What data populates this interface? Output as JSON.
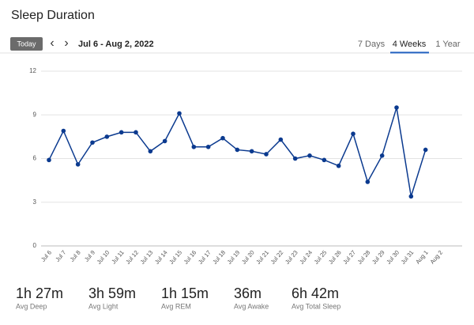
{
  "header": {
    "title": "Sleep Duration"
  },
  "toolbar": {
    "today": "Today",
    "prev": "‹",
    "next": "›",
    "range": "Jul 6 - Aug 2, 2022",
    "tabs": [
      "7 Days",
      "4 Weeks",
      "1 Year"
    ],
    "active_tab": 1
  },
  "chart_data": {
    "type": "line",
    "color": "#0b3a8f",
    "grid": true,
    "categories": [
      "Jul 6",
      "Jul 7",
      "Jul 8",
      "Jul 9",
      "Jul 10",
      "Jul 11",
      "Jul 12",
      "Jul 13",
      "Jul 14",
      "Jul 15",
      "Jul 16",
      "Jul 17",
      "Jul 18",
      "Jul 19",
      "Jul 20",
      "Jul 21",
      "Jul 22",
      "Jul 23",
      "Jul 24",
      "Jul 25",
      "Jul 26",
      "Jul 27",
      "Jul 28",
      "Jul 29",
      "Jul 30",
      "Jul 31",
      "Aug 1",
      "Aug 2"
    ],
    "values": [
      5.9,
      7.9,
      5.6,
      7.1,
      7.5,
      7.8,
      7.8,
      6.5,
      7.2,
      9.1,
      6.8,
      6.8,
      7.4,
      6.6,
      6.5,
      6.3,
      7.3,
      6.0,
      6.2,
      5.9,
      5.5,
      7.7,
      4.4,
      6.2,
      9.5,
      3.4,
      6.6,
      null
    ],
    "ylim": [
      0,
      12
    ],
    "yticks": [
      0,
      3,
      6,
      9,
      12
    ]
  },
  "stats": [
    {
      "value": "1h 27m",
      "label": "Avg Deep"
    },
    {
      "value": "3h 59m",
      "label": "Avg Light"
    },
    {
      "value": "1h 15m",
      "label": "Avg REM"
    },
    {
      "value": "36m",
      "label": "Avg Awake"
    },
    {
      "value": "6h 42m",
      "label": "Avg Total Sleep"
    }
  ]
}
